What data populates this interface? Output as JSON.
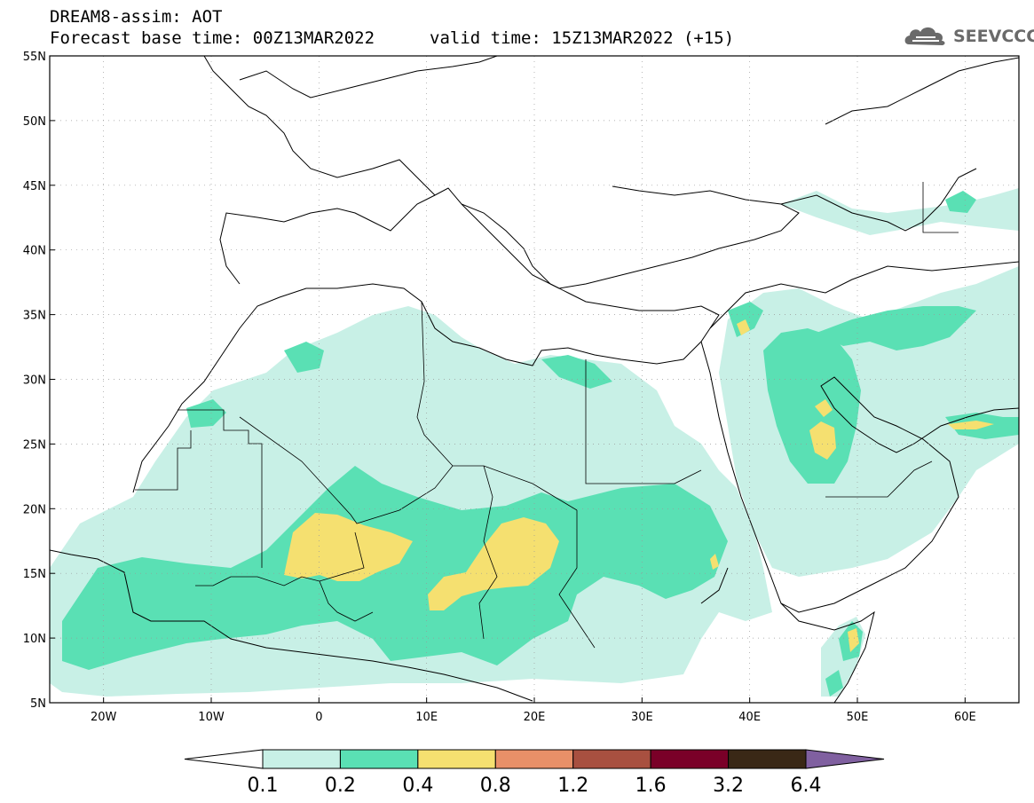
{
  "header": {
    "title": "DREAM8-assim: AOT",
    "base_time": "Forecast base time: 00Z13MAR2022",
    "valid_time": "valid time: 15Z13MAR2022 (+15)",
    "logo_text": "SEEVCCC"
  },
  "map": {
    "lon_range": [
      -25,
      65
    ],
    "lat_range": [
      5,
      55
    ],
    "lat_labels": [
      "55N",
      "50N",
      "45N",
      "40N",
      "35N",
      "30N",
      "25N",
      "20N",
      "15N",
      "10N",
      "5N"
    ],
    "lon_labels": [
      "20W",
      "10W",
      "0",
      "10E",
      "20E",
      "30E",
      "40E",
      "50E",
      "60E"
    ],
    "grid": "dotted"
  },
  "colorbar": {
    "colors": [
      "#ffffff",
      "#c8f0e6",
      "#5ae0b4",
      "#f5e070",
      "#e89068",
      "#a85040",
      "#7a0028",
      "#3a2816",
      "#8060a0"
    ],
    "labels": [
      "0.1",
      "0.2",
      "0.4",
      "0.8",
      "1.2",
      "1.6",
      "3.2",
      "6.4"
    ]
  }
}
